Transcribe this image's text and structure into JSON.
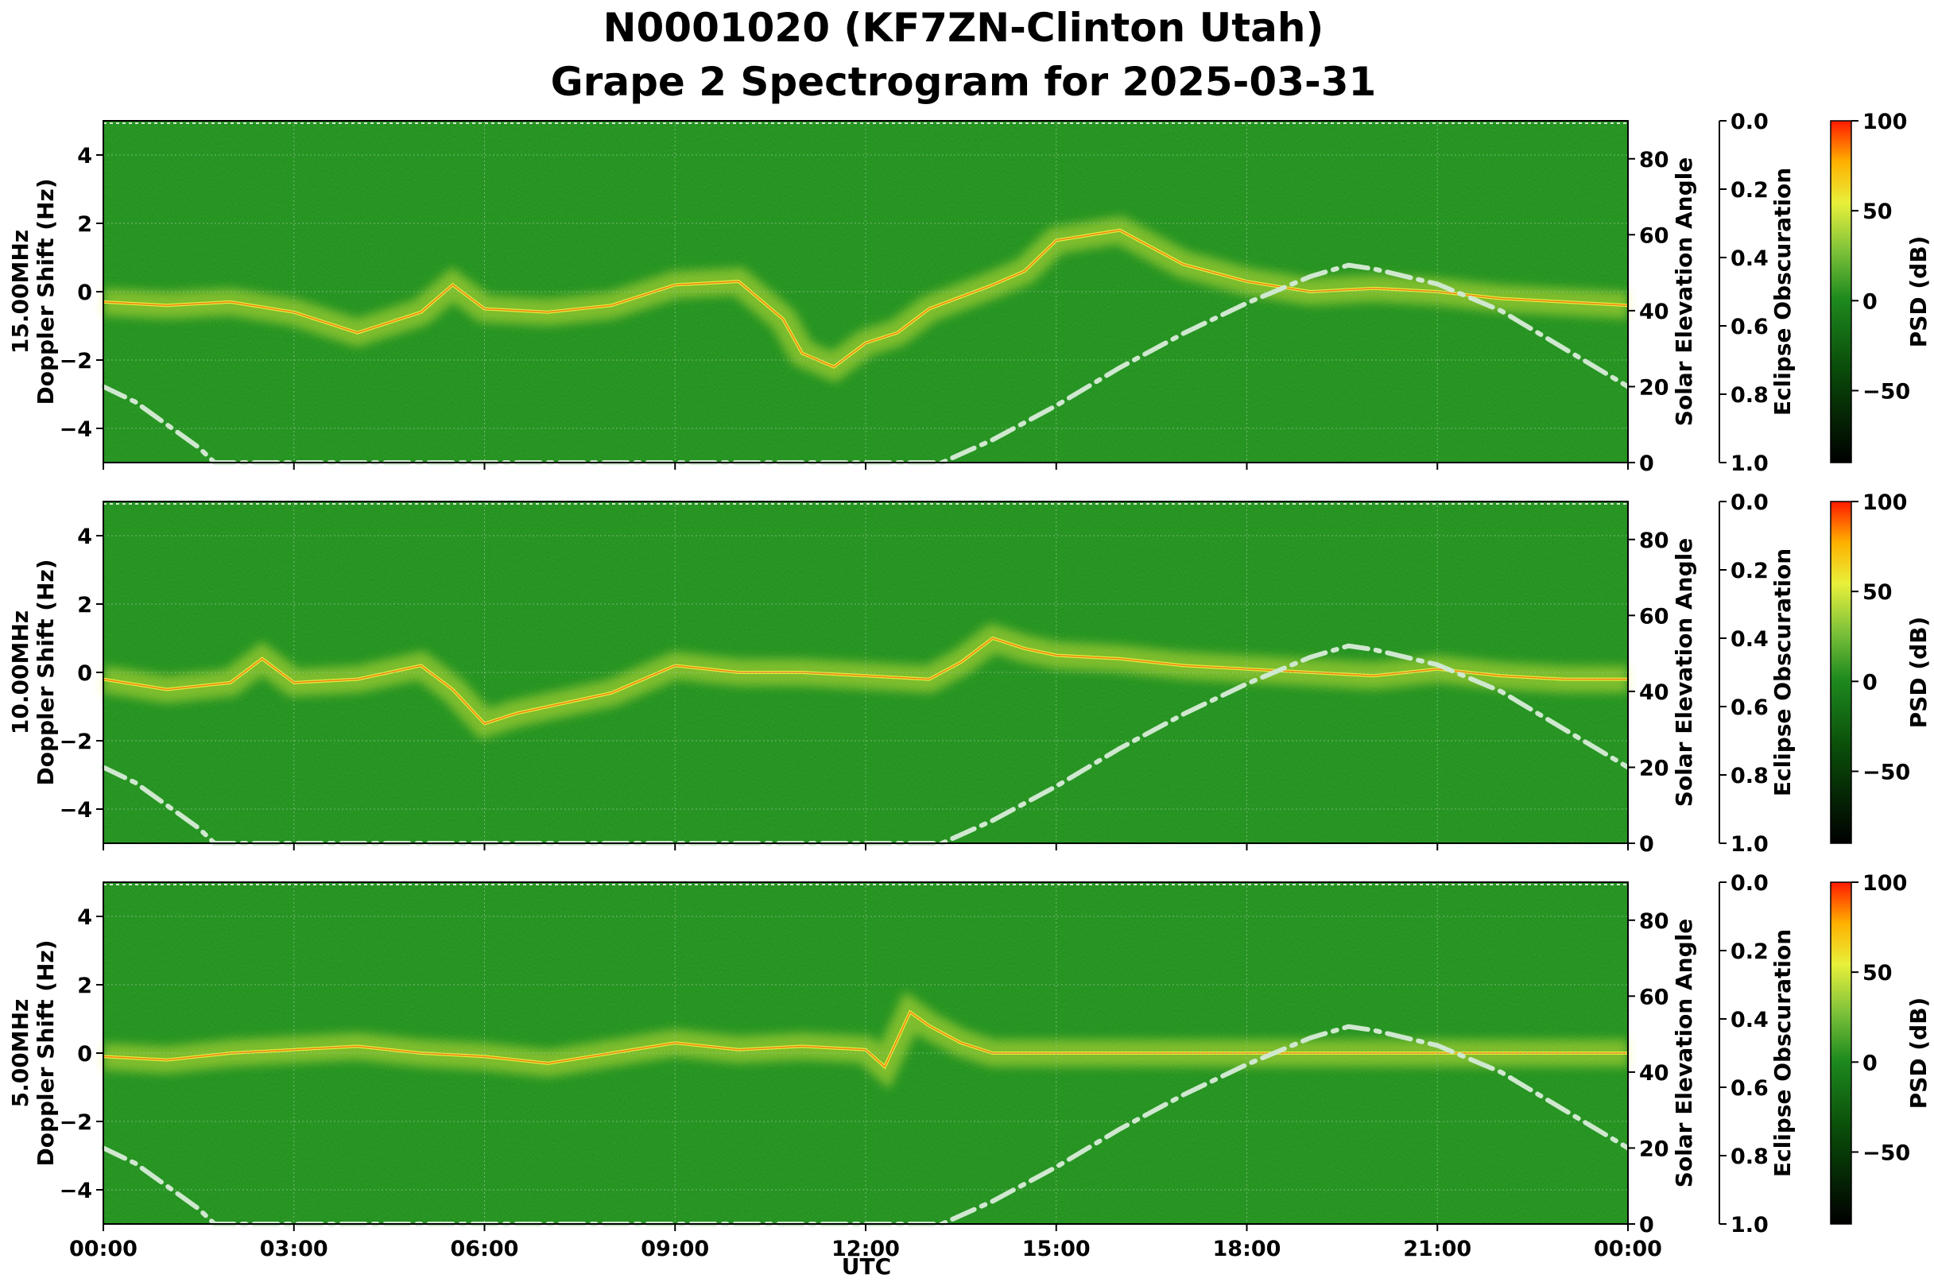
{
  "title_line1": "N0001020 (KF7ZN-Clinton Utah)",
  "title_line2": "Grape 2 Spectrogram for 2025-03-31",
  "xlabel": "UTC",
  "x_ticks": [
    "00:00",
    "03:00",
    "06:00",
    "09:00",
    "12:00",
    "15:00",
    "18:00",
    "21:00",
    "00:00"
  ],
  "colors": {
    "background_green": "#1e8a1e",
    "signal_yellow": "#e8f03a",
    "peak_red": "#ff2a00",
    "solar_curve": "#cfe8cf"
  },
  "chart_data": [
    {
      "type": "heatmap",
      "frequency_label": "15.00MHz",
      "ylabel": "Doppler Shift (Hz)",
      "ylim": [
        -5,
        5
      ],
      "y_ticks": [
        "4",
        "2",
        "0",
        "−2",
        "−4"
      ],
      "xlim_utc_hours": [
        0,
        24
      ],
      "doppler_trace": {
        "utc_hours": [
          0,
          1,
          2,
          3,
          4,
          5,
          5.5,
          6,
          7,
          8,
          9,
          10,
          10.7,
          11,
          11.5,
          12,
          12.5,
          13,
          14,
          14.5,
          15,
          16,
          17,
          18,
          19,
          20,
          21,
          22,
          23,
          24
        ],
        "doppler_hz": [
          -0.3,
          -0.4,
          -0.3,
          -0.6,
          -1.2,
          -0.6,
          0.2,
          -0.5,
          -0.6,
          -0.4,
          0.2,
          0.3,
          -0.8,
          -1.8,
          -2.2,
          -1.5,
          -1.2,
          -0.5,
          0.2,
          0.6,
          1.5,
          1.8,
          0.8,
          0.3,
          0.0,
          0.1,
          0.0,
          -0.2,
          -0.3,
          -0.4
        ]
      },
      "solar_elevation": {
        "label": "Solar Elevation Angle",
        "ylim": [
          0,
          90
        ],
        "y_ticks": [
          0,
          20,
          40,
          60,
          80
        ],
        "utc_hours": [
          0,
          0.5,
          1,
          1.5,
          1.75,
          13.2,
          14,
          15,
          16,
          17,
          18,
          19,
          19.6,
          20,
          21,
          22,
          23,
          24
        ],
        "degrees": [
          20,
          16,
          10,
          4,
          0,
          0,
          6,
          15,
          25,
          34,
          42,
          49,
          52,
          51,
          47,
          40,
          30,
          20
        ]
      },
      "eclipse_obscuration": {
        "label": "Eclipse Obscuration",
        "ylim": [
          0.0,
          1.0
        ],
        "y_ticks": [
          "0.0",
          "0.2",
          "0.4",
          "0.6",
          "0.8",
          "1.0"
        ]
      },
      "colorbar": {
        "label": "PSD (dB)",
        "range": [
          -90,
          100
        ],
        "ticks": [
          "100",
          "50",
          "0",
          "−50"
        ]
      }
    },
    {
      "type": "heatmap",
      "frequency_label": "10.00MHz",
      "ylabel": "Doppler Shift (Hz)",
      "ylim": [
        -5,
        5
      ],
      "y_ticks": [
        "4",
        "2",
        "0",
        "−2",
        "−4"
      ],
      "xlim_utc_hours": [
        0,
        24
      ],
      "doppler_trace": {
        "utc_hours": [
          0,
          1,
          2,
          2.5,
          3,
          4,
          5,
          5.5,
          6,
          6.5,
          7,
          8,
          9,
          10,
          11,
          12,
          13,
          13.5,
          14,
          14.5,
          15,
          16,
          17,
          18,
          19,
          20,
          21,
          22,
          23,
          24
        ],
        "doppler_hz": [
          -0.2,
          -0.5,
          -0.3,
          0.4,
          -0.3,
          -0.2,
          0.2,
          -0.5,
          -1.5,
          -1.2,
          -1.0,
          -0.6,
          0.2,
          0.0,
          0.0,
          -0.1,
          -0.2,
          0.3,
          1.0,
          0.7,
          0.5,
          0.4,
          0.2,
          0.1,
          0.0,
          -0.1,
          0.1,
          -0.1,
          -0.2,
          -0.2
        ]
      },
      "solar_elevation": {
        "label": "Solar Elevation Angle",
        "ylim": [
          0,
          90
        ],
        "y_ticks": [
          0,
          20,
          40,
          60,
          80
        ],
        "utc_hours": [
          0,
          0.5,
          1,
          1.5,
          1.75,
          13.2,
          14,
          15,
          16,
          17,
          18,
          19,
          19.6,
          20,
          21,
          22,
          23,
          24
        ],
        "degrees": [
          20,
          16,
          10,
          4,
          0,
          0,
          6,
          15,
          25,
          34,
          42,
          49,
          52,
          51,
          47,
          40,
          30,
          20
        ]
      },
      "eclipse_obscuration": {
        "label": "Eclipse Obscuration",
        "ylim": [
          0.0,
          1.0
        ],
        "y_ticks": [
          "0.0",
          "0.2",
          "0.4",
          "0.6",
          "0.8",
          "1.0"
        ]
      },
      "colorbar": {
        "label": "PSD (dB)",
        "range": [
          -90,
          100
        ],
        "ticks": [
          "100",
          "50",
          "0",
          "−50"
        ]
      }
    },
    {
      "type": "heatmap",
      "frequency_label": "5.00MHz",
      "ylabel": "Doppler Shift (Hz)",
      "ylim": [
        -5,
        5
      ],
      "y_ticks": [
        "4",
        "2",
        "0",
        "−2",
        "−4"
      ],
      "xlim_utc_hours": [
        0,
        24
      ],
      "doppler_trace": {
        "utc_hours": [
          0,
          1,
          2,
          3,
          4,
          5,
          6,
          7,
          8,
          9,
          10,
          11,
          12,
          12.3,
          12.7,
          13,
          13.5,
          14,
          15,
          16,
          17,
          18,
          19,
          20,
          21,
          22,
          23,
          24
        ],
        "doppler_hz": [
          -0.1,
          -0.2,
          0.0,
          0.1,
          0.2,
          0.0,
          -0.1,
          -0.3,
          0.0,
          0.3,
          0.1,
          0.2,
          0.1,
          -0.4,
          1.2,
          0.8,
          0.3,
          0.0,
          0.0,
          0.0,
          0.0,
          0.0,
          0.0,
          0.0,
          0.0,
          0.0,
          0.0,
          0.0
        ]
      },
      "solar_elevation": {
        "label": "Solar Elevation Angle",
        "ylim": [
          0,
          90
        ],
        "y_ticks": [
          0,
          20,
          40,
          60,
          80
        ],
        "utc_hours": [
          0,
          0.5,
          1,
          1.5,
          1.75,
          13.2,
          14,
          15,
          16,
          17,
          18,
          19,
          19.6,
          20,
          21,
          22,
          23,
          24
        ],
        "degrees": [
          20,
          16,
          10,
          4,
          0,
          0,
          6,
          15,
          25,
          34,
          42,
          49,
          52,
          51,
          47,
          40,
          30,
          20
        ]
      },
      "eclipse_obscuration": {
        "label": "Eclipse Obscuration",
        "ylim": [
          0.0,
          1.0
        ],
        "y_ticks": [
          "0.0",
          "0.2",
          "0.4",
          "0.6",
          "0.8",
          "1.0"
        ]
      },
      "colorbar": {
        "label": "PSD (dB)",
        "range": [
          -90,
          100
        ],
        "ticks": [
          "100",
          "50",
          "0",
          "−50"
        ]
      }
    }
  ]
}
